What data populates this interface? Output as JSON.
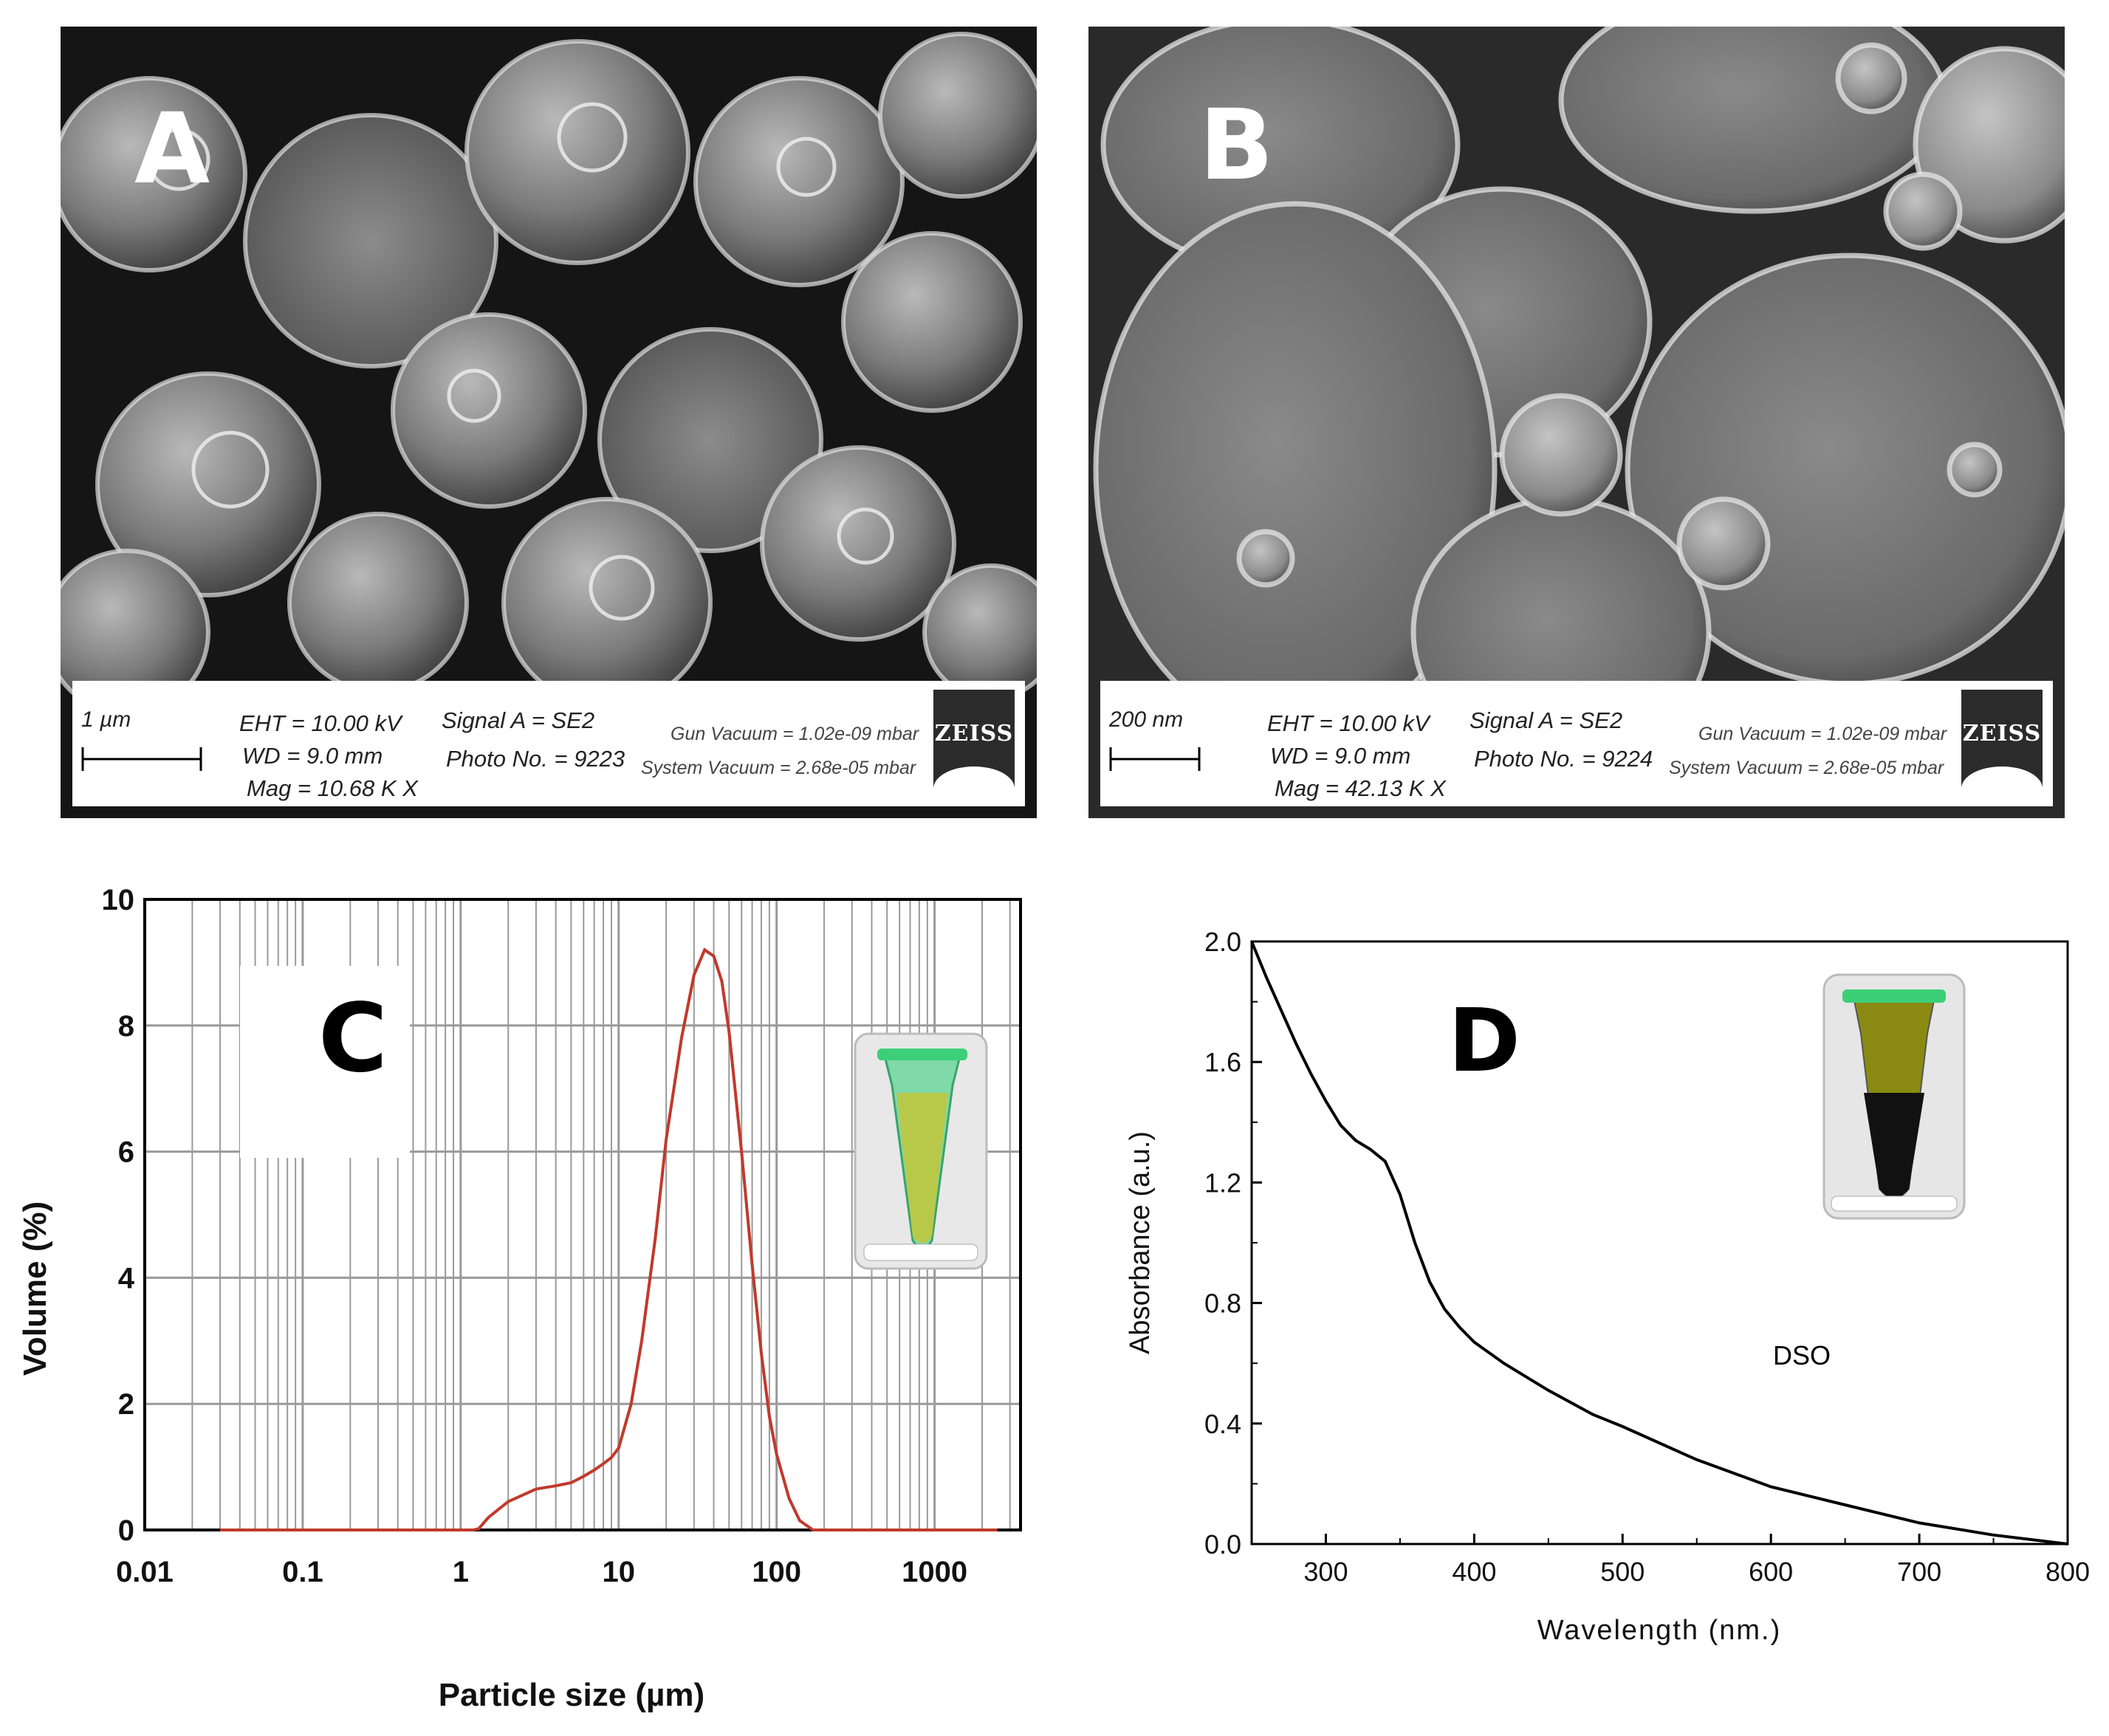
{
  "panel_a": {
    "label": "A",
    "scale_text": "1 µm",
    "eht": "EHT = 10.00 kV",
    "wd": "WD =  9.0 mm",
    "mag": "Mag =   10.68 K X",
    "signal": "Signal A = SE2",
    "photo": "Photo No. = 9223",
    "gun_vacuum": "Gun Vacuum = 1.02e-09 mbar",
    "system_vacuum": "System Vacuum = 2.68e-05 mbar",
    "logo": "ZEISS"
  },
  "panel_b": {
    "label": "B",
    "scale_text": "200 nm",
    "eht": "EHT = 10.00 kV",
    "wd": "WD =  9.0 mm",
    "mag": "Mag =   42.13 K X",
    "signal": "Signal A = SE2",
    "photo": "Photo No. = 9224",
    "gun_vacuum": "Gun Vacuum = 1.02e-09 mbar",
    "system_vacuum": "System Vacuum = 2.68e-05 mbar",
    "logo": "ZEISS"
  },
  "chart_data": [
    {
      "panel": "C",
      "type": "line",
      "xscale": "log",
      "xlabel": "Particle size (µm)",
      "ylabel": "Volume (%)",
      "xlim": [
        0.01,
        3500
      ],
      "ylim": [
        0,
        10
      ],
      "xticks": [
        "0.01",
        "0.1",
        "1",
        "10",
        "100",
        "1000"
      ],
      "yticks": [
        "0",
        "2",
        "4",
        "6",
        "8",
        "10"
      ],
      "grid": true,
      "line_color": "#c0392b",
      "series": [
        {
          "x": [
            0.03,
            0.5,
            1.2,
            1.3,
            1.5,
            2,
            3,
            4,
            5,
            6,
            7,
            8,
            9,
            10,
            12,
            14,
            17,
            20,
            25,
            30,
            35,
            40,
            45,
            50,
            60,
            70,
            80,
            90,
            100,
            120,
            140,
            170,
            2500
          ],
          "y": [
            0,
            0,
            0,
            0.02,
            0.2,
            0.45,
            0.65,
            0.7,
            0.75,
            0.85,
            0.95,
            1.05,
            1.15,
            1.3,
            2.0,
            3.0,
            4.6,
            6.2,
            7.8,
            8.8,
            9.2,
            9.1,
            8.7,
            7.9,
            6.0,
            4.2,
            2.8,
            1.8,
            1.2,
            0.5,
            0.15,
            0,
            0
          ]
        }
      ]
    },
    {
      "panel": "D",
      "type": "line",
      "xlabel": "Wavelength (nm.)",
      "ylabel": "Absorbance (a.u.)",
      "xlim": [
        250,
        800
      ],
      "ylim": [
        0,
        2
      ],
      "xticks": [
        "300",
        "400",
        "500",
        "600",
        "700",
        "800"
      ],
      "yticks": [
        "0.0",
        "0.4",
        "0.8",
        "1.2",
        "1.6",
        "2.0"
      ],
      "grid": false,
      "annotation": "DSO",
      "line_color": "#000000",
      "series": [
        {
          "x": [
            250,
            260,
            270,
            280,
            290,
            300,
            310,
            320,
            330,
            340,
            350,
            360,
            370,
            380,
            390,
            400,
            420,
            450,
            480,
            500,
            550,
            600,
            650,
            700,
            750,
            800
          ],
          "y": [
            2.0,
            1.88,
            1.77,
            1.66,
            1.56,
            1.47,
            1.39,
            1.34,
            1.31,
            1.27,
            1.16,
            1.0,
            0.87,
            0.78,
            0.72,
            0.67,
            0.6,
            0.51,
            0.43,
            0.39,
            0.28,
            0.19,
            0.13,
            0.07,
            0.03,
            0.0
          ]
        }
      ]
    }
  ],
  "panel_c": {
    "label": "C"
  },
  "panel_d": {
    "label": "D"
  }
}
